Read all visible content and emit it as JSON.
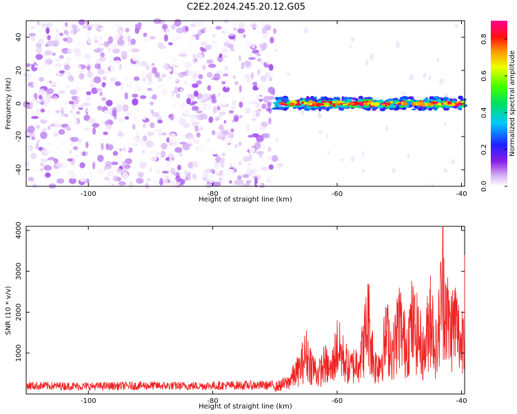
{
  "title": "C2E2.2024.245.20.12.G05",
  "chart_data": [
    {
      "type": "heatmap",
      "xlabel": "Height of straight line (km)",
      "ylabel": "Frequency (Hz)",
      "xlim": [
        -110,
        -39.5
      ],
      "ylim": [
        -50,
        50
      ],
      "xticks": [
        -100,
        -80,
        -60,
        -40
      ],
      "yticks": [
        -40,
        -20,
        0,
        20,
        40
      ],
      "grid": false,
      "colorbar": {
        "label": "Normalized spectral amplitude",
        "range": [
          0,
          0.9
        ],
        "ticks": [
          0.0,
          0.2,
          0.4,
          0.6,
          0.8
        ],
        "colormap": "rainbow (white to purple, blue, cyan, green, yellow, orange, red, magenta)"
      },
      "regions": [
        {
          "x_range": [
            -110,
            -70
          ],
          "frequency_range": [
            -50,
            50
          ],
          "amplitude_range": [
            0.0,
            0.12
          ],
          "pattern": "broadband noise"
        },
        {
          "x_range": [
            -70,
            -39.5
          ],
          "frequency_center": 0,
          "frequency_halfwidth": 3,
          "amplitude_range": [
            0.2,
            0.9
          ],
          "pattern": "narrow band near 0 Hz"
        }
      ]
    },
    {
      "type": "line",
      "xlabel": "Height of straight line (km)",
      "ylabel": "SNR (10 * v/v)",
      "xlim": [
        -110,
        -39.5
      ],
      "ylim": [
        0,
        4100
      ],
      "xticks": [
        -100,
        -80,
        -60,
        -40
      ],
      "yticks": [
        1000,
        2000,
        3000,
        4000
      ],
      "grid": false,
      "series": [
        {
          "color": "#ee2222",
          "x": [
            -110,
            -105,
            -100,
            -95,
            -90,
            -85,
            -80,
            -75,
            -70,
            -68,
            -66,
            -65,
            -64,
            -63,
            -62,
            -61,
            -60,
            -59,
            -58,
            -57,
            -56,
            -55,
            -54,
            -53,
            -52,
            -51,
            -50,
            -49,
            -48,
            -47,
            -46,
            -45,
            -44,
            -43,
            -42,
            -41,
            -40,
            -39.5
          ],
          "values": [
            240,
            230,
            220,
            230,
            240,
            230,
            240,
            250,
            250,
            400,
            900,
            1450,
            1000,
            700,
            1100,
            800,
            1700,
            1300,
            900,
            1100,
            1500,
            2700,
            1000,
            1200,
            2100,
            1500,
            2600,
            1700,
            2500,
            2100,
            1400,
            2900,
            1500,
            4100,
            2300,
            2600,
            1700,
            3400
          ]
        }
      ]
    }
  ]
}
